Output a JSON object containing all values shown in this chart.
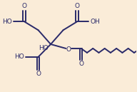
{
  "background_color": "#faecd8",
  "line_color": "#2a2a6a",
  "line_width": 1.4,
  "text_color": "#2a2a6a",
  "font_size": 6.5,
  "figsize": [
    1.92,
    1.29
  ],
  "dpi": 100,
  "xlim": [
    0,
    192
  ],
  "ylim": [
    0,
    129
  ]
}
